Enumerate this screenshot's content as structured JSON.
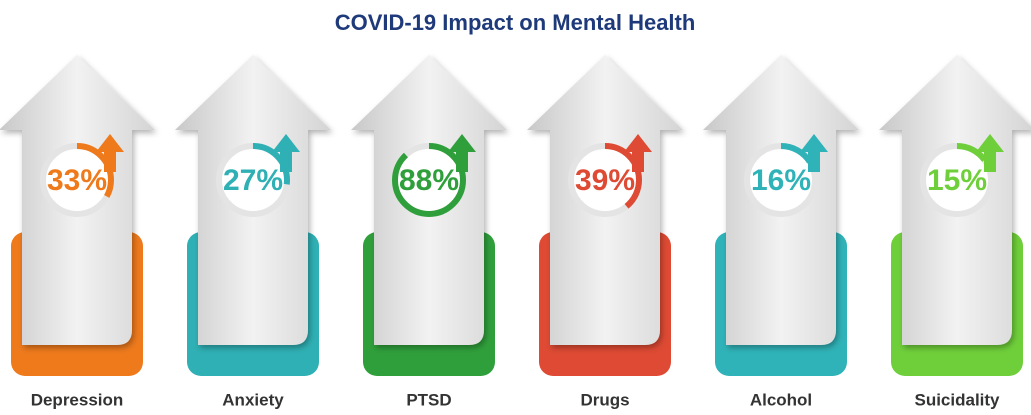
{
  "chart_data": {
    "type": "infographic",
    "title": "COVID-19 Impact on Mental Health",
    "categories": [
      "Depression",
      "Anxiety",
      "PTSD",
      "Drugs",
      "Alcohol",
      "Suicidality"
    ],
    "values": [
      33,
      27,
      88,
      39,
      16,
      15
    ],
    "value_labels": [
      "33%",
      "27%",
      "88%",
      "39%",
      "16%",
      "15%"
    ],
    "colors": [
      "#ee7a1c",
      "#2fb0b4",
      "#2f9f3b",
      "#de4a33",
      "#2fb3b8",
      "#6fcf3a"
    ]
  }
}
